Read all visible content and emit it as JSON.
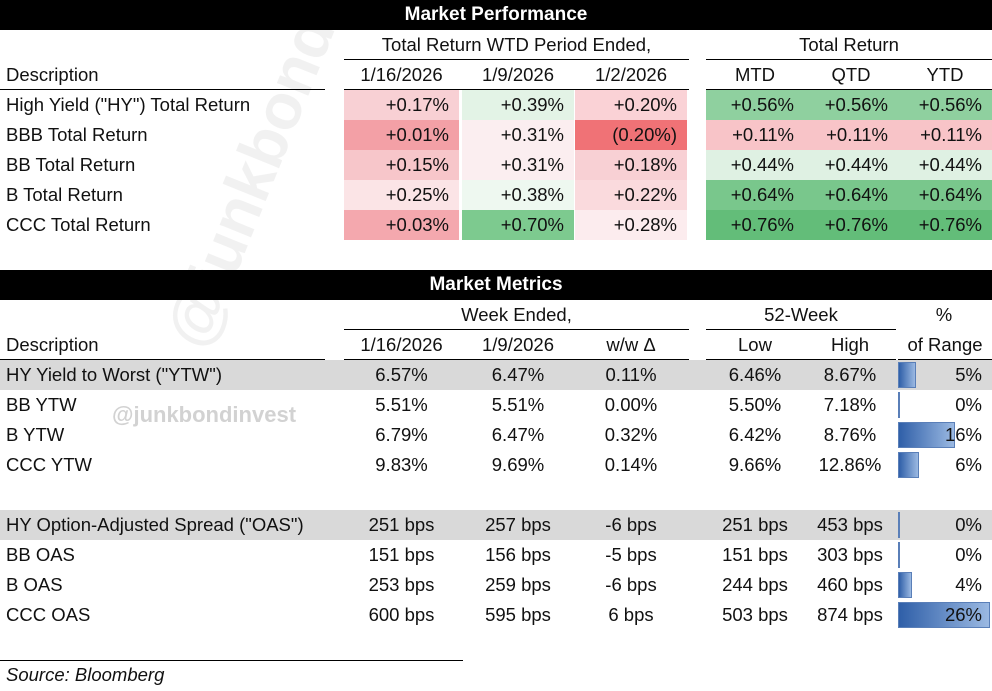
{
  "performance": {
    "title": "Market Performance",
    "group_wtd": "Total Return WTD Period Ended,",
    "group_total": "Total Return",
    "desc_header": "Description",
    "col_headers": [
      "1/16/2026",
      "1/9/2026",
      "1/2/2026",
      "MTD",
      "QTD",
      "YTD"
    ],
    "rows": [
      {
        "label": "High Yield (\"HY\") Total Return",
        "values": [
          "+0.17%",
          "+0.39%",
          "+0.20%",
          "+0.56%",
          "+0.56%",
          "+0.56%"
        ],
        "colors": [
          "#f8d0d4",
          "#e3f3e6",
          "#fad2d6",
          "#8fd09f",
          "#8fd09f",
          "#8fd09f"
        ]
      },
      {
        "label": "BBB Total Return",
        "values": [
          "+0.01%",
          "+0.31%",
          "(0.20%)",
          "+0.11%",
          "+0.11%",
          "+0.11%"
        ],
        "colors": [
          "#f3a0a6",
          "#fbeef0",
          "#f07276",
          "#f8c4c8",
          "#f8c4c8",
          "#f8c4c8"
        ]
      },
      {
        "label": "BB Total Return",
        "values": [
          "+0.15%",
          "+0.31%",
          "+0.18%",
          "+0.44%",
          "+0.44%",
          "+0.44%"
        ],
        "colors": [
          "#f7c6ca",
          "#fbeef0",
          "#f8d0d4",
          "#dff1e3",
          "#dff1e3",
          "#dff1e3"
        ]
      },
      {
        "label": "B Total Return",
        "values": [
          "+0.25%",
          "+0.38%",
          "+0.22%",
          "+0.64%",
          "+0.64%",
          "+0.64%"
        ],
        "colors": [
          "#fbe4e6",
          "#eef8f0",
          "#fadadd",
          "#79c78c",
          "#79c78c",
          "#79c78c"
        ]
      },
      {
        "label": "CCC Total Return",
        "values": [
          "+0.03%",
          "+0.70%",
          "+0.28%",
          "+0.76%",
          "+0.76%",
          "+0.76%"
        ],
        "colors": [
          "#f4a8ae",
          "#7dca8f",
          "#fcecee",
          "#63bd79",
          "#63bd79",
          "#63bd79"
        ]
      }
    ]
  },
  "metrics": {
    "title": "Market Metrics",
    "group_week": "Week Ended,",
    "group_52": "52-Week",
    "group_pct": "%",
    "desc_header": "Description",
    "col_headers": [
      "1/16/2026",
      "1/9/2026",
      "w/w Δ",
      "Low",
      "High",
      "of Range"
    ],
    "ytw_rows": [
      {
        "label": "HY Yield to Worst (\"YTW\")",
        "values": [
          "6.57%",
          "6.47%",
          "0.11%",
          "6.46%",
          "8.67%",
          "5%"
        ],
        "range": 0.05,
        "shaded": true
      },
      {
        "label": "BB YTW",
        "values": [
          "5.51%",
          "5.51%",
          "0.00%",
          "5.50%",
          "7.18%",
          "0%"
        ],
        "range": 0.0,
        "shaded": false
      },
      {
        "label": "B YTW",
        "values": [
          "6.79%",
          "6.47%",
          "0.32%",
          "6.42%",
          "8.76%",
          "16%"
        ],
        "range": 0.16,
        "shaded": false
      },
      {
        "label": "CCC YTW",
        "values": [
          "9.83%",
          "9.69%",
          "0.14%",
          "9.66%",
          "12.86%",
          "6%"
        ],
        "range": 0.06,
        "shaded": false
      }
    ],
    "oas_rows": [
      {
        "label": "HY Option-Adjusted Spread (\"OAS\")",
        "values": [
          "251 bps",
          "257 bps",
          "-6 bps",
          "251 bps",
          "453 bps",
          "0%"
        ],
        "range": 0.0,
        "shaded": true
      },
      {
        "label": "BB OAS",
        "values": [
          "151 bps",
          "156 bps",
          "-5 bps",
          "151 bps",
          "303 bps",
          "0%"
        ],
        "range": 0.0,
        "shaded": false
      },
      {
        "label": "B OAS",
        "values": [
          "253 bps",
          "259 bps",
          "-6 bps",
          "244 bps",
          "460 bps",
          "4%"
        ],
        "range": 0.04,
        "shaded": false
      },
      {
        "label": "CCC OAS",
        "values": [
          "600 bps",
          "595 bps",
          "6 bps",
          "503 bps",
          "874 bps",
          "26%"
        ],
        "range": 0.26,
        "shaded": false
      }
    ]
  },
  "watermark": "@junkbondinvest",
  "source": "Source: Bloomberg"
}
